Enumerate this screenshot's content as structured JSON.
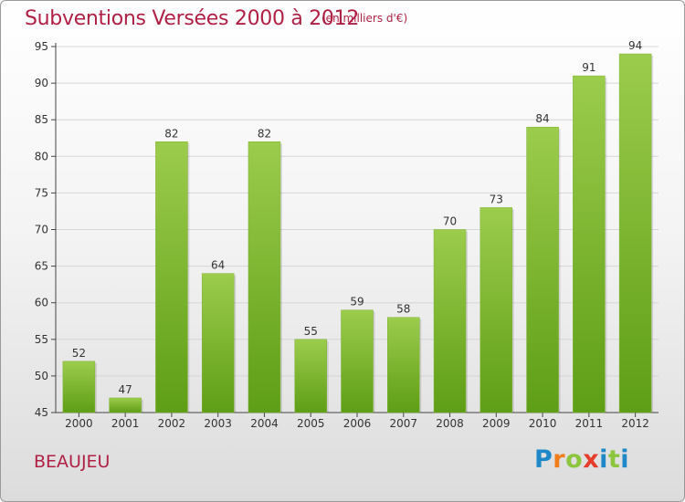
{
  "title": "Subventions Versées 2000 à 2012",
  "unit_note": "(en milliers d'€)",
  "commune": "BEAUJEU",
  "logo": {
    "text": "Proxiti",
    "letter_colors": [
      "#1f88c8",
      "#f07c1a",
      "#8cc63e",
      "#e63c2a",
      "#1f88c8",
      "#8cc63e",
      "#1f88c8"
    ]
  },
  "colors": {
    "bar_top": "#9ccc4c",
    "bar_bottom": "#5e9e16",
    "text_accent": "#b02045"
  },
  "chart_data": {
    "type": "bar",
    "title": "Subventions Versées 2000 à 2012",
    "categories": [
      "2000",
      "2001",
      "2002",
      "2003",
      "2004",
      "2005",
      "2006",
      "2007",
      "2008",
      "2009",
      "2010",
      "2011",
      "2012"
    ],
    "values": [
      52,
      47,
      82,
      64,
      82,
      55,
      59,
      58,
      70,
      73,
      84,
      91,
      94
    ],
    "ylim": [
      45,
      95
    ],
    "yticks": [
      45,
      50,
      55,
      60,
      65,
      70,
      75,
      80,
      85,
      90,
      95
    ],
    "grid": true,
    "data_labels": true
  }
}
